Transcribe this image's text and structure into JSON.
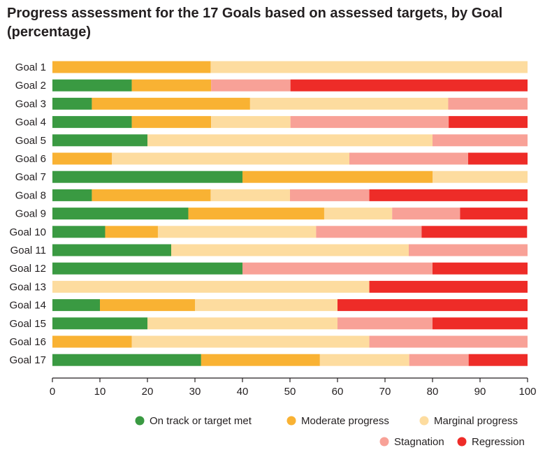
{
  "chart_data": {
    "type": "bar",
    "orientation": "horizontal",
    "stacked": true,
    "title": "Progress assessment for the 17 Goals based on assessed targets, by Goal (percentage)",
    "xlabel": "",
    "ylabel": "",
    "xlim": [
      0,
      100
    ],
    "xticks": [
      0,
      10,
      20,
      30,
      40,
      50,
      60,
      70,
      80,
      90,
      100
    ],
    "grid": false,
    "legend_position": "bottom-right",
    "categories": [
      "Goal 1",
      "Goal 2",
      "Goal 3",
      "Goal 4",
      "Goal 5",
      "Goal 6",
      "Goal 7",
      "Goal 8",
      "Goal 9",
      "Goal 10",
      "Goal 11",
      "Goal 12",
      "Goal 13",
      "Goal 14",
      "Goal 15",
      "Goal 16",
      "Goal 17"
    ],
    "series": [
      {
        "name": "On track or target met",
        "color": "#3a9a42",
        "values": [
          0,
          16.7,
          8.3,
          16.7,
          20,
          0,
          40,
          8.3,
          28.6,
          11.1,
          25,
          40,
          0,
          10,
          20,
          0,
          31.3
        ]
      },
      {
        "name": "Moderate progress",
        "color": "#f9b233",
        "values": [
          33.3,
          16.7,
          33.3,
          16.7,
          0,
          12.5,
          40,
          25,
          28.6,
          11.1,
          0,
          0,
          0,
          20,
          0,
          16.7,
          25
        ]
      },
      {
        "name": "Marginal progress",
        "color": "#fddc9f",
        "values": [
          66.7,
          0,
          41.7,
          16.7,
          60,
          50,
          20,
          16.7,
          14.3,
          33.3,
          50,
          0,
          66.7,
          30,
          40,
          50,
          18.8
        ]
      },
      {
        "name": "Stagnation",
        "color": "#f8a197",
        "values": [
          0,
          16.7,
          16.7,
          33.3,
          20,
          25,
          0,
          16.7,
          14.3,
          22.2,
          25,
          40,
          0,
          0,
          20,
          33.3,
          12.5
        ]
      },
      {
        "name": "Regression",
        "color": "#ee2c28",
        "values": [
          0,
          50,
          0,
          16.7,
          0,
          12.5,
          0,
          33.3,
          14.3,
          22.2,
          0,
          20,
          33.3,
          40,
          20,
          0,
          12.5
        ]
      }
    ]
  }
}
